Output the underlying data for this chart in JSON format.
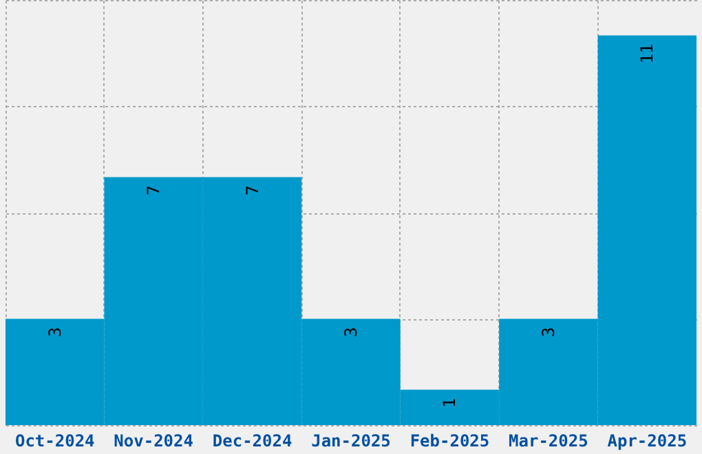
{
  "chart_data": {
    "type": "bar",
    "categories": [
      "Oct-2024",
      "Nov-2024",
      "Dec-2024",
      "Jan-2025",
      "Feb-2025",
      "Mar-2025",
      "Apr-2025"
    ],
    "values": [
      3,
      7,
      7,
      3,
      1,
      3,
      11
    ],
    "color": "#0099cc",
    "ylim": [
      0,
      12
    ],
    "yticks": [
      {
        "value": 0,
        "label": null
      },
      {
        "value": 3,
        "label": null
      },
      {
        "value": 6,
        "label": null
      },
      {
        "value": 9,
        "label": null
      },
      {
        "value": 12,
        "label": null
      }
    ],
    "grid": true,
    "tick_labels": "x",
    "data_labels": true
  }
}
